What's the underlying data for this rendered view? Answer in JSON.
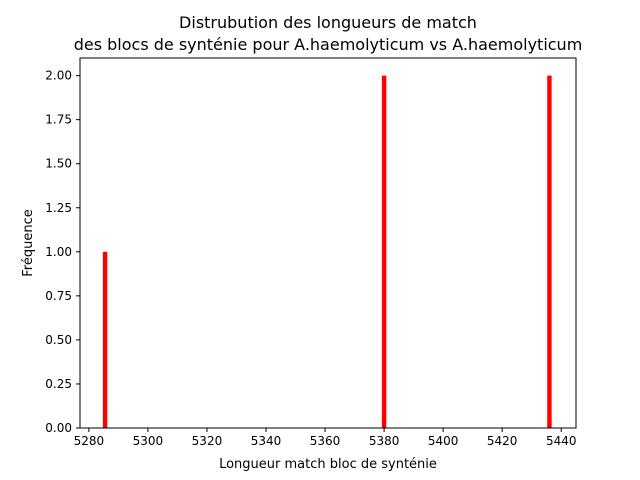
{
  "chart_data": {
    "type": "bar",
    "title_line1": "Distrubution des longueurs de match",
    "title_line2": "des blocs de synténie pour A.haemolyticum vs A.haemolyticum",
    "xlabel": "Longueur match bloc de synténie",
    "ylabel": "Fréquence",
    "xlim": [
      5277,
      5445
    ],
    "ylim": [
      0,
      2.1
    ],
    "bin_width": 1.5,
    "x_ticks": [
      5280,
      5300,
      5320,
      5340,
      5360,
      5380,
      5400,
      5420,
      5440
    ],
    "x_tick_labels": [
      "5280",
      "5300",
      "5320",
      "5340",
      "5360",
      "5380",
      "5400",
      "5420",
      "5440"
    ],
    "y_ticks": [
      0,
      0.25,
      0.5,
      0.75,
      1.0,
      1.25,
      1.5,
      1.75,
      2.0
    ],
    "y_tick_labels": [
      "0.00",
      "0.25",
      "0.50",
      "0.75",
      "1.00",
      "1.25",
      "1.50",
      "1.75",
      "2.00"
    ],
    "bars": [
      {
        "x": 5285.5,
        "frequency": 1
      },
      {
        "x": 5380.0,
        "frequency": 2
      },
      {
        "x": 5436.0,
        "frequency": 2
      }
    ],
    "bar_color": "#ff0000",
    "grid": false,
    "legend": "none"
  }
}
